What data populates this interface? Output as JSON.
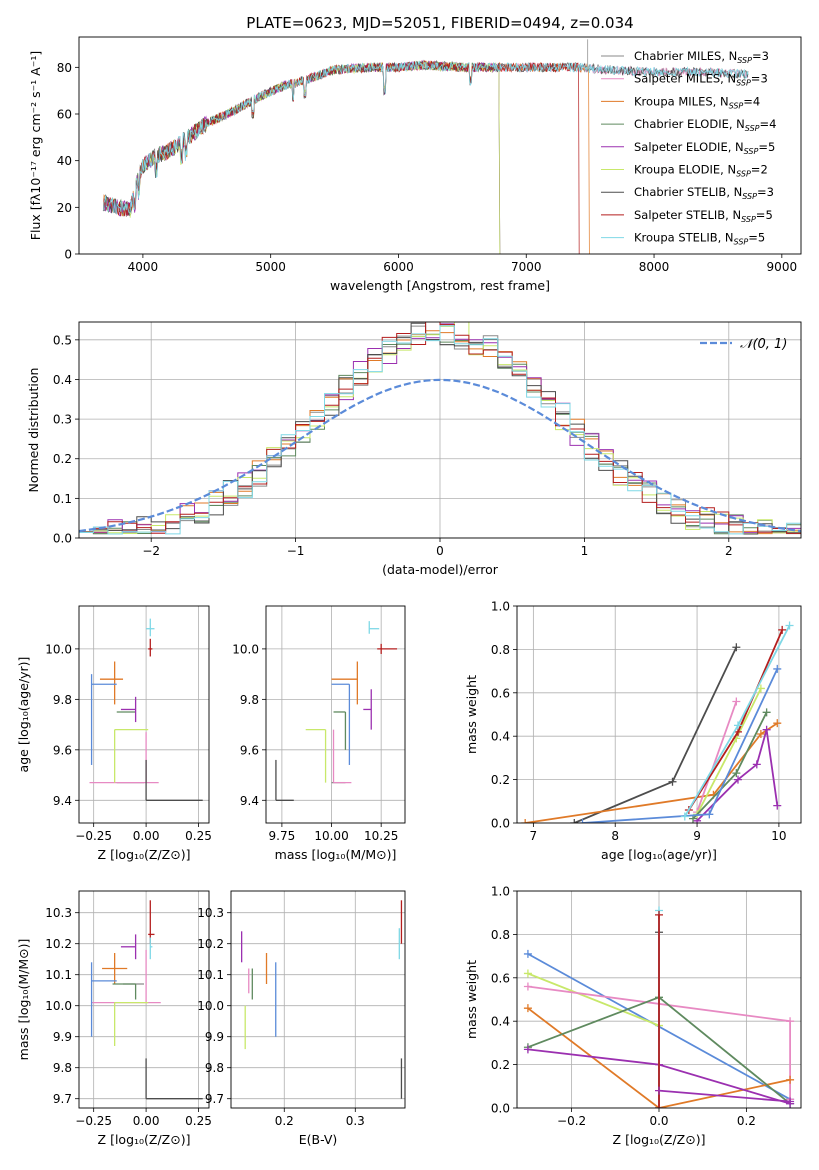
{
  "colors": {
    "Chabrier MILES": "#8a8a8a",
    "Salpeter MILES": "#e78ac3",
    "Kroupa MILES": "#e07a28",
    "Chabrier ELODIE": "#5f8a5f",
    "Salpeter ELODIE": "#9b30b0",
    "Kroupa ELODIE": "#c8e86a",
    "Chabrier STELIB": "#4d4d4d",
    "Salpeter STELIB": "#b41e1e",
    "Kroupa STELIB": "#7fd8e6",
    "blue": "#5b8bd9"
  },
  "chart_data": [
    {
      "id": "spectrum",
      "type": "line",
      "title": "PLATE=0623, MJD=52051, FIBERID=0494, z=0.034",
      "xlabel": "wavelength [Angstrom, rest frame]",
      "ylabel": "Flux [fλ10⁻¹⁷ erg cm⁻² s⁻¹ A⁻¹]",
      "xlim": [
        3500,
        9150
      ],
      "ylim": [
        0,
        93
      ],
      "xticks": [
        4000,
        5000,
        6000,
        7000,
        8000,
        9000
      ],
      "yticks": [
        0,
        20,
        40,
        60,
        80
      ],
      "legend_position": "top-right",
      "continuum_x": [
        3700,
        3800,
        3900,
        3950,
        4000,
        4100,
        4200,
        4300,
        4400,
        4500,
        4700,
        4900,
        5100,
        5300,
        5500,
        5800,
        6000,
        6200,
        6500,
        6800,
        7000,
        7200,
        7400,
        7600,
        8000,
        8400,
        8700
      ],
      "continuum_y": [
        22,
        20,
        19,
        30,
        38,
        42,
        44,
        48,
        52,
        56,
        61,
        67,
        72,
        75,
        79,
        80,
        80,
        81,
        80,
        80,
        80,
        80,
        80,
        79,
        78,
        78,
        77
      ],
      "series": [
        {
          "name": "Chabrier MILES",
          "nssp": "3"
        },
        {
          "name": "Salpeter MILES",
          "nssp": "3"
        },
        {
          "name": "Kroupa MILES",
          "nssp": "4"
        },
        {
          "name": "Chabrier ELODIE",
          "nssp": "4"
        },
        {
          "name": "Salpeter ELODIE",
          "nssp": "5"
        },
        {
          "name": "Kroupa ELODIE",
          "nssp": "2"
        },
        {
          "name": "Chabrier STELIB",
          "nssp": "3"
        },
        {
          "name": "Salpeter STELIB",
          "nssp": "5"
        },
        {
          "name": "Kroupa STELIB",
          "nssp": "5"
        }
      ]
    },
    {
      "id": "residuals",
      "type": "line",
      "xlabel": "(data-model)/error",
      "ylabel": "Normed distribution",
      "xlim": [
        -2.5,
        2.5
      ],
      "ylim": [
        0,
        0.545
      ],
      "xticks": [
        -2,
        -1,
        0,
        1,
        2
      ],
      "xtick_labels": [
        "−2",
        "−1",
        "0",
        "1",
        "2"
      ],
      "yticks": [
        0.0,
        0.1,
        0.2,
        0.3,
        0.4,
        0.5
      ],
      "grid": true,
      "legend": "𝒩(0, 1)",
      "legend_position": "top-right",
      "bin_width": 0.1,
      "curve": "gaussian mean 0, sigma 1"
    },
    {
      "id": "age-vs-Z",
      "type": "scatter",
      "xlabel": "Z [log₁₀(Z/Z⊙)]",
      "ylabel": "age  [log₁₀(age/yr)]",
      "xlim": [
        -0.32,
        0.3
      ],
      "ylim": [
        9.31,
        10.17
      ],
      "xticks": [
        -0.25,
        0,
        0.25
      ],
      "xtick_labels": [
        "−0.25",
        "0.00",
        "0.25"
      ],
      "yticks": [
        9.4,
        9.6,
        9.8,
        10.0
      ],
      "grid": true,
      "points": [
        {
          "name": "Chabrier MILES",
          "x": -0.01,
          "y": 9.47,
          "xerr": [
            0.13,
            0.0
          ],
          "yerr": [
            0,
            0
          ]
        },
        {
          "name": "Salpeter MILES",
          "x": 0.0,
          "y": 9.47,
          "xerr": [
            0.27,
            0.06
          ],
          "yerr": [
            0,
            0.2
          ]
        },
        {
          "name": "Kroupa MILES",
          "x": -0.15,
          "y": 9.88,
          "xerr": [
            0.07,
            0.04
          ],
          "yerr": [
            0.1,
            0.07
          ]
        },
        {
          "name": "Chabrier ELODIE",
          "x": -0.05,
          "y": 9.75,
          "xerr": [
            0.09,
            0.0
          ],
          "yerr": [
            0,
            0
          ]
        },
        {
          "name": "Salpeter ELODIE",
          "x": -0.05,
          "y": 9.76,
          "xerr": [
            0.07,
            0.0
          ],
          "yerr": [
            0.05,
            0.05
          ]
        },
        {
          "name": "Kroupa ELODIE",
          "x": -0.15,
          "y": 9.68,
          "xerr": [
            0.0,
            0.16
          ],
          "yerr": [
            0.21,
            0
          ]
        },
        {
          "name": "Chabrier STELIB",
          "x": 0.0,
          "y": 9.4,
          "xerr": [
            0.0,
            0.27
          ],
          "yerr": [
            0.0,
            0.16
          ]
        },
        {
          "name": "Salpeter STELIB",
          "x": 0.02,
          "y": 10.0,
          "xerr": [
            0.01,
            0.01
          ],
          "yerr": [
            0.03,
            0.04
          ]
        },
        {
          "name": "Kroupa STELIB",
          "x": 0.02,
          "y": 10.08,
          "xerr": [
            0.02,
            0.02
          ],
          "yerr": [
            0.03,
            0.04
          ]
        },
        {
          "name": "blue",
          "x": -0.26,
          "y": 9.86,
          "xerr": [
            0.0,
            0.12
          ],
          "yerr": [
            0.32,
            0.04
          ]
        }
      ]
    },
    {
      "id": "age-vs-mass",
      "type": "scatter",
      "xlabel": "mass [log₁₀(M/M⊙)]",
      "xlim": [
        9.67,
        10.37
      ],
      "ylim": [
        9.31,
        10.17
      ],
      "xticks": [
        9.75,
        10.0,
        10.25
      ],
      "xtick_labels": [
        "9.75",
        "10.00",
        "10.25"
      ],
      "yticks": [
        9.4,
        9.6,
        9.8,
        10.0
      ],
      "grid": true,
      "points": [
        {
          "name": "Chabrier MILES",
          "x": 10.07,
          "y": 9.47,
          "xerr": [
            0.07,
            0.0
          ],
          "yerr": [
            0,
            0
          ]
        },
        {
          "name": "Salpeter MILES",
          "x": 10.01,
          "y": 9.47,
          "xerr": [
            0,
            0.09
          ],
          "yerr": [
            0,
            0.21
          ]
        },
        {
          "name": "Kroupa MILES",
          "x": 10.13,
          "y": 9.88,
          "xerr": [
            0.13,
            0.0
          ],
          "yerr": [
            0.1,
            0.07
          ]
        },
        {
          "name": "Chabrier ELODIE",
          "x": 10.07,
          "y": 9.75,
          "xerr": [
            0.06,
            0.0
          ],
          "yerr": [
            0.15,
            0
          ]
        },
        {
          "name": "Salpeter ELODIE",
          "x": 10.2,
          "y": 9.76,
          "xerr": [
            0.04,
            0.0
          ],
          "yerr": [
            0.08,
            0.08
          ]
        },
        {
          "name": "Kroupa ELODIE",
          "x": 9.97,
          "y": 9.68,
          "xerr": [
            0.1,
            0.0
          ],
          "yerr": [
            0.21,
            0
          ]
        },
        {
          "name": "Chabrier STELIB",
          "x": 9.72,
          "y": 9.4,
          "xerr": [
            0.0,
            0.09
          ],
          "yerr": [
            0,
            0.16
          ]
        },
        {
          "name": "Salpeter STELIB",
          "x": 10.25,
          "y": 10.0,
          "xerr": [
            0.02,
            0.08
          ],
          "yerr": [
            0.02,
            0.02
          ]
        },
        {
          "name": "Kroupa STELIB",
          "x": 10.19,
          "y": 10.08,
          "xerr": [
            0.0,
            0.05
          ],
          "yerr": [
            0.02,
            0.03
          ]
        },
        {
          "name": "blue",
          "x": 10.09,
          "y": 9.86,
          "xerr": [
            0.09,
            0.0
          ],
          "yerr": [
            0.32,
            0.0
          ]
        }
      ]
    },
    {
      "id": "mass-weight-vs-age",
      "type": "line",
      "xlabel": "age  [log₁₀(age/yr)]",
      "ylabel": "mass weight",
      "xlim": [
        6.8,
        10.27
      ],
      "ylim": [
        0,
        1
      ],
      "xticks": [
        7,
        8,
        9,
        10
      ],
      "yticks": [
        0.0,
        0.2,
        0.4,
        0.6,
        0.8,
        1.0
      ],
      "grid": true,
      "series": [
        {
          "name": "Chabrier STELIB",
          "x": [
            7.5,
            8.7,
            9.48
          ],
          "y": [
            0.0,
            0.19,
            0.81
          ]
        },
        {
          "name": "Kroupa MILES",
          "x": [
            6.9,
            9.2,
            9.78,
            9.98
          ],
          "y": [
            0.0,
            0.13,
            0.41,
            0.46
          ]
        },
        {
          "name": "Salpeter ELODIE",
          "x": [
            9.0,
            9.5,
            9.73,
            9.85,
            9.98
          ],
          "y": [
            0.01,
            0.2,
            0.27,
            0.43,
            0.08
          ]
        },
        {
          "name": "Salpeter MILES",
          "x": [
            9.0,
            9.48
          ],
          "y": [
            0.05,
            0.56
          ]
        },
        {
          "name": "Kroupa ELODIE",
          "x": [
            9.0,
            9.48,
            9.78
          ],
          "y": [
            0.04,
            0.39,
            0.62
          ]
        },
        {
          "name": "Chabrier ELODIE",
          "x": [
            8.95,
            9.48,
            9.85
          ],
          "y": [
            0.02,
            0.23,
            0.51
          ]
        },
        {
          "name": "blue",
          "x": [
            7.6,
            9.15,
            9.98
          ],
          "y": [
            0.0,
            0.04,
            0.71
          ]
        },
        {
          "name": "Salpeter STELIB",
          "x": [
            8.9,
            9.5,
            10.04
          ],
          "y": [
            0.06,
            0.42,
            0.89
          ]
        },
        {
          "name": "Kroupa STELIB",
          "x": [
            8.85,
            9.5,
            10.13
          ],
          "y": [
            0.03,
            0.45,
            0.91
          ]
        }
      ]
    },
    {
      "id": "mass-vs-Z",
      "type": "scatter",
      "xlabel": "Z [log₁₀(Z/Z⊙)]",
      "ylabel": "mass [log₁₀(M/M⊙)]",
      "xlim": [
        -0.32,
        0.3
      ],
      "ylim": [
        9.67,
        10.37
      ],
      "xticks": [
        -0.25,
        0,
        0.25
      ],
      "xtick_labels": [
        "−0.25",
        "0.00",
        "0.25"
      ],
      "yticks": [
        9.7,
        9.8,
        9.9,
        10.0,
        10.1,
        10.2,
        10.3
      ],
      "grid": true,
      "points": [
        {
          "name": "Chabrier MILES",
          "x": -0.01,
          "y": 10.07,
          "xerr": [
            0.1,
            0.0
          ],
          "yerr": [
            0,
            0
          ]
        },
        {
          "name": "Salpeter MILES",
          "x": 0.0,
          "y": 10.01,
          "xerr": [
            0.26,
            0.07
          ],
          "yerr": [
            0,
            0.17
          ]
        },
        {
          "name": "Kroupa MILES",
          "x": -0.15,
          "y": 10.12,
          "xerr": [
            0.06,
            0.06
          ],
          "yerr": [
            0.05,
            0.05
          ]
        },
        {
          "name": "Chabrier ELODIE",
          "x": -0.05,
          "y": 10.07,
          "xerr": [
            0.11,
            0.0
          ],
          "yerr": [
            0.05,
            0
          ]
        },
        {
          "name": "Salpeter ELODIE",
          "x": -0.05,
          "y": 10.19,
          "xerr": [
            0.07,
            0.0
          ],
          "yerr": [
            0.04,
            0.04
          ]
        },
        {
          "name": "Kroupa ELODIE",
          "x": -0.15,
          "y": 10.01,
          "xerr": [
            0.0,
            0.16
          ],
          "yerr": [
            0.14,
            0
          ]
        },
        {
          "name": "Chabrier STELIB",
          "x": 0.0,
          "y": 9.7,
          "xerr": [
            0.0,
            0.27
          ],
          "yerr": [
            0,
            0.13
          ]
        },
        {
          "name": "Salpeter STELIB",
          "x": 0.02,
          "y": 10.23,
          "xerr": [
            0.01,
            0.02
          ],
          "yerr": [
            0.03,
            0.11
          ]
        },
        {
          "name": "Kroupa STELIB",
          "x": 0.02,
          "y": 10.19,
          "xerr": [
            0.0,
            0.01
          ],
          "yerr": [
            0.04,
            0.03
          ]
        },
        {
          "name": "blue",
          "x": -0.26,
          "y": 10.08,
          "xerr": [
            0.0,
            0.12
          ],
          "yerr": [
            0.18,
            0.06
          ]
        }
      ]
    },
    {
      "id": "mass-vs-EBV",
      "type": "scatter",
      "xlabel": "E(B-V)",
      "xlim": [
        0.125,
        0.37
      ],
      "ylim": [
        9.67,
        10.37
      ],
      "xticks": [
        0.2,
        0.3
      ],
      "xtick_labels": [
        "0.2",
        "0.3"
      ],
      "yticks": [
        9.7,
        9.8,
        9.9,
        10.0,
        10.1,
        10.2,
        10.3
      ],
      "grid": true,
      "points": [
        {
          "name": "Salpeter ELODIE",
          "x": 0.14,
          "y": 10.19,
          "xerr": [
            0,
            0
          ],
          "yerr": [
            0.05,
            0.05
          ]
        },
        {
          "name": "Kroupa ELODIE",
          "x": 0.145,
          "y": 10.0,
          "xerr": [
            0,
            0
          ],
          "yerr": [
            0.14,
            0.0
          ]
        },
        {
          "name": "Chabrier ELODIE",
          "x": 0.155,
          "y": 10.07,
          "xerr": [
            0,
            0
          ],
          "yerr": [
            0.05,
            0.05
          ]
        },
        {
          "name": "Kroupa MILES",
          "x": 0.175,
          "y": 10.12,
          "xerr": [
            0,
            0
          ],
          "yerr": [
            0.05,
            0.05
          ]
        },
        {
          "name": "blue",
          "x": 0.188,
          "y": 10.08,
          "xerr": [
            0,
            0
          ],
          "yerr": [
            0.18,
            0.06
          ]
        },
        {
          "name": "Salpeter MILES",
          "x": 0.15,
          "y": 10.08,
          "xerr": [
            0,
            0
          ],
          "yerr": [
            0.04,
            0.04
          ]
        },
        {
          "name": "Salpeter STELIB",
          "x": 0.365,
          "y": 10.23,
          "xerr": [
            0,
            0
          ],
          "yerr": [
            0.03,
            0.11
          ]
        },
        {
          "name": "Kroupa STELIB",
          "x": 0.362,
          "y": 10.2,
          "xerr": [
            0,
            0
          ],
          "yerr": [
            0.05,
            0.05
          ]
        },
        {
          "name": "Chabrier STELIB",
          "x": 0.365,
          "y": 9.7,
          "xerr": [
            0,
            0
          ],
          "yerr": [
            0,
            0.13
          ]
        }
      ]
    },
    {
      "id": "mass-weight-vs-Z",
      "type": "line",
      "xlabel": "Z [log₁₀(Z/Z⊙)]",
      "ylabel": "mass weight",
      "xlim": [
        -0.325,
        0.325
      ],
      "ylim": [
        0,
        1
      ],
      "xticks": [
        -0.2,
        0.0,
        0.2
      ],
      "xtick_labels": [
        "−0.2",
        "0.0",
        "0.2"
      ],
      "yticks": [
        0.0,
        0.2,
        0.4,
        0.6,
        0.8,
        1.0
      ],
      "grid": true,
      "series": [
        {
          "name": "blue",
          "x": [
            -0.3,
            0.3,
            0.3
          ],
          "y": [
            0.71,
            0.04,
            0.02
          ]
        },
        {
          "name": "Kroupa ELODIE",
          "x": [
            -0.3,
            0.0
          ],
          "y": [
            0.62,
            0.38
          ]
        },
        {
          "name": "Salpeter MILES",
          "x": [
            -0.3,
            0.3,
            0.3
          ],
          "y": [
            0.56,
            0.4,
            0.04
          ]
        },
        {
          "name": "Kroupa MILES",
          "x": [
            -0.3,
            0.0,
            0.3
          ],
          "y": [
            0.46,
            0.0,
            0.13
          ]
        },
        {
          "name": "Chabrier ELODIE",
          "x": [
            -0.3,
            0.0,
            0.3
          ],
          "y": [
            0.28,
            0.51,
            0.02
          ]
        },
        {
          "name": "Salpeter ELODIE",
          "x": [
            -0.3,
            0.0,
            0.3
          ],
          "y": [
            0.27,
            0.2,
            0.02
          ]
        },
        {
          "name": "Chabrier STELIB",
          "x": [
            0.0,
            0.0
          ],
          "y": [
            0.0,
            0.81
          ]
        },
        {
          "name": "Kroupa STELIB",
          "x": [
            0.0,
            0.0
          ],
          "y": [
            0.0,
            0.91
          ]
        },
        {
          "name": "Salpeter STELIB",
          "x": [
            0.0,
            0.0
          ],
          "y": [
            0.0,
            0.89
          ]
        },
        {
          "name": "Salpeter ELODIE",
          "x": [
            0.0,
            0.3
          ],
          "y": [
            0.08,
            0.03
          ]
        }
      ]
    }
  ]
}
